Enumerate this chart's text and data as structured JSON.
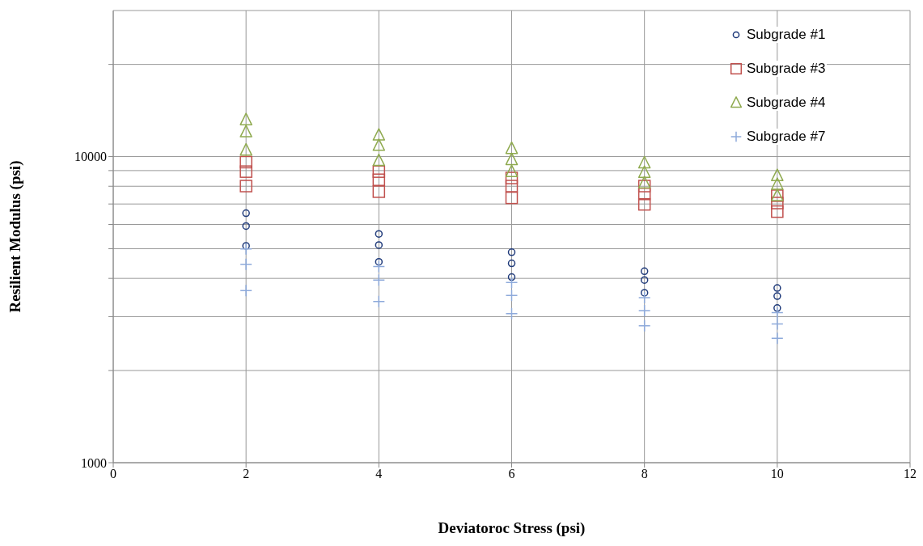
{
  "chart_data": {
    "type": "scatter",
    "xlabel": "Deviatoroc Stress (psi)",
    "ylabel": "Resilient Modulus (psi)",
    "log": "y",
    "xlim": [
      0,
      12
    ],
    "xticks": [
      0,
      2,
      4,
      6,
      8,
      10,
      12
    ],
    "ylim": [
      1000,
      30000
    ],
    "yticks": [
      1000,
      {
        "value": 2000,
        "label": null
      },
      {
        "value": 3000,
        "label": null
      },
      {
        "value": 4000,
        "label": null
      },
      {
        "value": 5000,
        "label": null
      },
      {
        "value": 6000,
        "label": null
      },
      {
        "value": 7000,
        "label": null
      },
      {
        "value": 8000,
        "label": null
      },
      {
        "value": 9000,
        "label": null
      },
      10000,
      {
        "value": 20000,
        "label": null
      }
    ],
    "grid": true,
    "legend": "top right",
    "series": [
      {
        "name": "Subgrade #1",
        "color": "#1f3a7a",
        "marker": "circle",
        "x": [
          2,
          2,
          2,
          4,
          4,
          4,
          6,
          6,
          6,
          8,
          8,
          8,
          10,
          10,
          10
        ],
        "values": [
          6530,
          5930,
          5110,
          5590,
          5140,
          4530,
          4870,
          4480,
          4040,
          4220,
          3950,
          3590,
          3720,
          3500,
          3200
        ]
      },
      {
        "name": "Subgrade #3",
        "color": "#c0504d",
        "marker": "square",
        "x": [
          2,
          2,
          2,
          4,
          4,
          4,
          6,
          6,
          6,
          8,
          8,
          8,
          10,
          10,
          10
        ],
        "values": [
          9590,
          8930,
          8010,
          8930,
          8400,
          7680,
          8510,
          8010,
          7330,
          8010,
          7550,
          6980,
          7450,
          7050,
          6610
        ]
      },
      {
        "name": "Subgrade #4",
        "color": "#8faa4f",
        "marker": "triangle",
        "x": [
          2,
          2,
          2,
          4,
          4,
          4,
          6,
          6,
          6,
          8,
          8,
          8,
          10,
          10,
          10
        ],
        "values": [
          13180,
          12040,
          10490,
          11750,
          10870,
          9700,
          10620,
          9770,
          8930,
          9530,
          8870,
          8200,
          8660,
          8110,
          7450
        ]
      },
      {
        "name": "Subgrade #7",
        "color": "#8eaadb",
        "marker": "cross",
        "x": [
          2,
          2,
          2,
          4,
          4,
          4,
          6,
          6,
          6,
          8,
          8,
          8,
          10,
          10,
          10
        ],
        "values": [
          4990,
          4450,
          3650,
          4370,
          3950,
          3360,
          3880,
          3520,
          3070,
          3460,
          3140,
          2800,
          3090,
          2840,
          2550
        ]
      }
    ]
  }
}
